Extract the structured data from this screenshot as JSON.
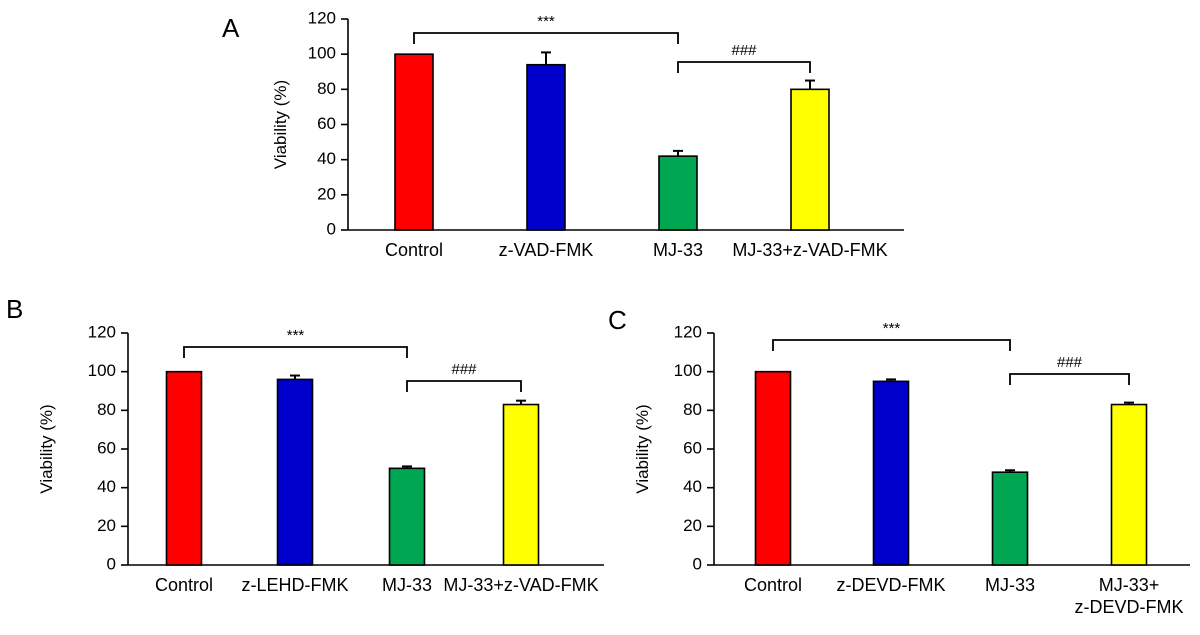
{
  "chart_data": [
    {
      "panel": "A",
      "type": "bar",
      "ylabel": "Viability (%)",
      "ylim": [
        0,
        120
      ],
      "yticks": [
        0,
        20,
        40,
        60,
        80,
        100,
        120
      ],
      "categories": [
        "Control",
        "z-VAD-FMK",
        "MJ-33",
        "MJ-33+z-VAD-FMK"
      ],
      "values": [
        100,
        94,
        42,
        80
      ],
      "errors": [
        0,
        7,
        3,
        5
      ],
      "colors": [
        "#ff0000",
        "#0000cc",
        "#00a651",
        "#ffff00"
      ],
      "brackets": [
        {
          "from": 0,
          "to": 2,
          "label": "***"
        },
        {
          "from": 2,
          "to": 3,
          "label": "###"
        }
      ]
    },
    {
      "panel": "B",
      "type": "bar",
      "ylabel": "Viability (%)",
      "ylim": [
        0,
        120
      ],
      "yticks": [
        0,
        20,
        40,
        60,
        80,
        100,
        120
      ],
      "categories": [
        "Control",
        "z-LEHD-FMK",
        "MJ-33",
        "MJ-33+z-VAD-FMK"
      ],
      "values": [
        100,
        96,
        50,
        83
      ],
      "errors": [
        0,
        2,
        1,
        2
      ],
      "colors": [
        "#ff0000",
        "#0000cc",
        "#00a651",
        "#ffff00"
      ],
      "brackets": [
        {
          "from": 0,
          "to": 2,
          "label": "***"
        },
        {
          "from": 2,
          "to": 3,
          "label": "###"
        }
      ]
    },
    {
      "panel": "C",
      "type": "bar",
      "ylabel": "Viability (%)",
      "ylim": [
        0,
        120
      ],
      "yticks": [
        0,
        20,
        40,
        60,
        80,
        100,
        120
      ],
      "categories": [
        "Control",
        "z-DEVD-FMK",
        "MJ-33",
        "MJ-33+\nz-DEVD-FMK"
      ],
      "values": [
        100,
        95,
        48,
        83
      ],
      "errors": [
        0,
        1,
        1,
        1
      ],
      "colors": [
        "#ff0000",
        "#0000cc",
        "#00a651",
        "#ffff00"
      ],
      "brackets": [
        {
          "from": 0,
          "to": 2,
          "label": "***"
        },
        {
          "from": 2,
          "to": 3,
          "label": "###"
        }
      ]
    }
  ]
}
